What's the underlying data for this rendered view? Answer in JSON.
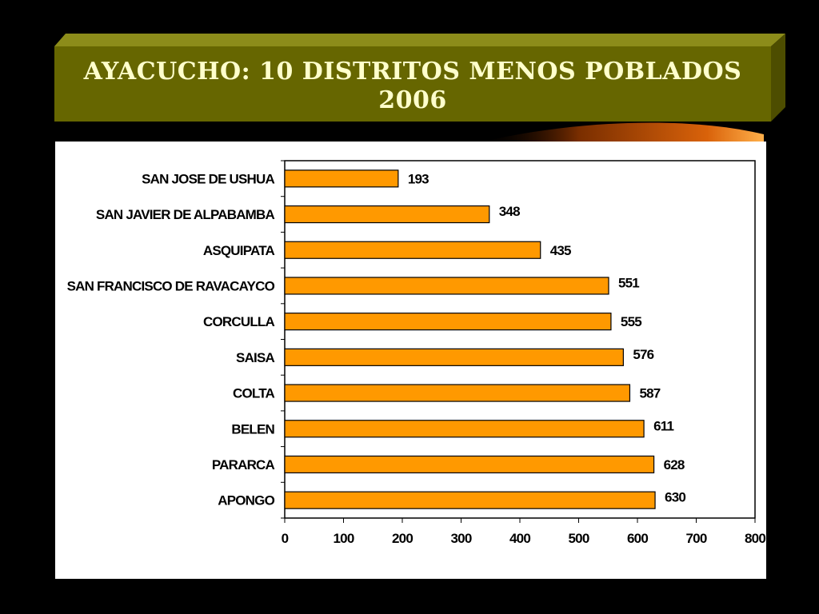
{
  "slide": {
    "title_line1": "AYACUCHO: 10 DISTRITOS MENOS POBLADOS",
    "title_line2": "2006"
  },
  "colors": {
    "background": "#000000",
    "title_box": "#666600",
    "title_text": "#ffffcc",
    "bar_fill": "#ff9900",
    "bar_stroke": "#000000",
    "plot_background": "#ffffff"
  },
  "chart_data": {
    "type": "bar",
    "orientation": "horizontal",
    "categories": [
      "SAN JOSE DE USHUA",
      "SAN JAVIER DE ALPABAMBA",
      "ASQUIPATA",
      "SAN FRANCISCO DE RAVACAYCO",
      "CORCULLA",
      "SAISA",
      "COLTA",
      "BELEN",
      "PARARCA",
      "APONGO"
    ],
    "values": [
      193,
      348,
      435,
      551,
      555,
      576,
      587,
      611,
      628,
      630
    ],
    "value_labels": [
      "193",
      "348",
      "435",
      "551",
      "555",
      "576",
      "587",
      "611",
      "628",
      "630"
    ],
    "xticks": [
      "0",
      "100",
      "200",
      "300",
      "400",
      "500",
      "600",
      "700",
      "800"
    ],
    "xlim": [
      0,
      800
    ],
    "title": "",
    "xlabel": "",
    "ylabel": "",
    "grid": false,
    "legend": "none"
  }
}
